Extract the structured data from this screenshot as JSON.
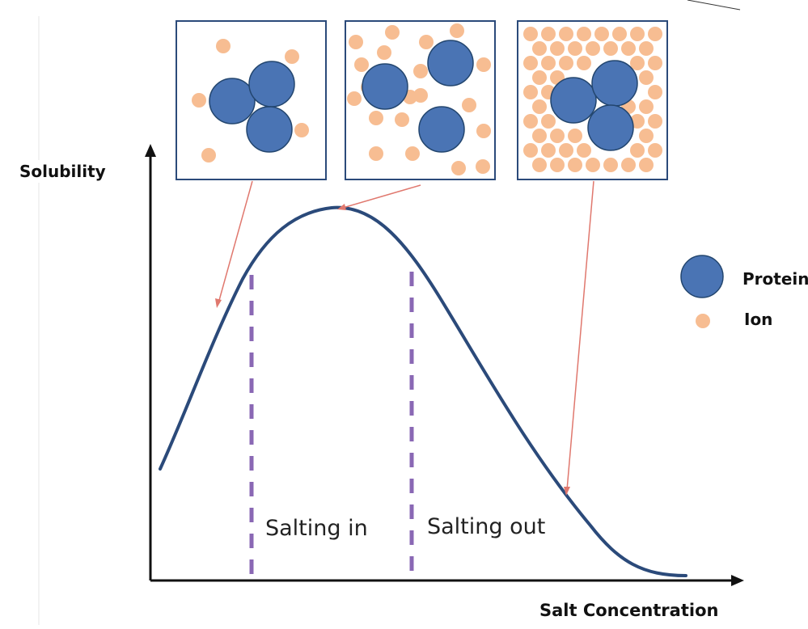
{
  "axes": {
    "y_label": "Solubility",
    "x_label": "Salt Concentration"
  },
  "regions": {
    "left": "Salting in",
    "right": "Salting out"
  },
  "legend": {
    "protein_label": "Protein",
    "ion_label": "Ion"
  },
  "colors": {
    "protein_fill": "#4a74b4",
    "protein_stroke": "#23466f",
    "ion_fill": "#f7bd92",
    "curve": "#2b4a7a",
    "divider": "#8a68b4",
    "arrow": "#e0786e",
    "panel_border": "#2b4a7a",
    "axis": "#111111"
  },
  "insets": [
    {
      "state": "low salt",
      "protein_count": 3
    },
    {
      "state": "optimal salt",
      "protein_count": 3
    },
    {
      "state": "high salt",
      "protein_count": 3
    }
  ]
}
